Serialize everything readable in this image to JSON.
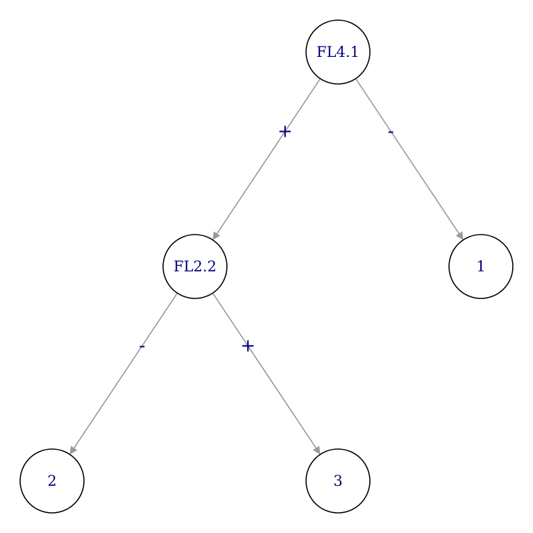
{
  "colors": {
    "label_text": "#000080",
    "edge": "#999999",
    "node_border": "#000000",
    "node_fill": "#ffffff"
  },
  "tree": {
    "nodes": [
      {
        "id": "FL4.1",
        "label": "FL4.1"
      },
      {
        "id": "FL2.2",
        "label": "FL2.2"
      },
      {
        "id": "1",
        "label": "1"
      },
      {
        "id": "2",
        "label": "2"
      },
      {
        "id": "3",
        "label": "3"
      }
    ],
    "edges": [
      {
        "from": "FL4.1",
        "to": "FL2.2",
        "label": "+"
      },
      {
        "from": "FL4.1",
        "to": "1",
        "label": "-"
      },
      {
        "from": "FL2.2",
        "to": "2",
        "label": "-"
      },
      {
        "from": "FL2.2",
        "to": "3",
        "label": "+"
      }
    ]
  }
}
